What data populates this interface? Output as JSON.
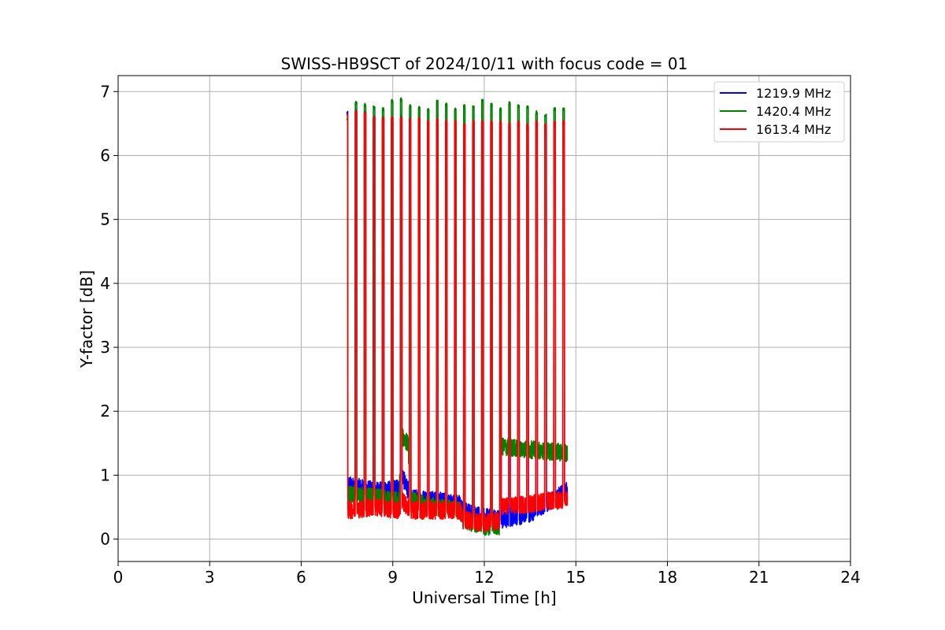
{
  "chart_data": {
    "type": "line",
    "title": "SWISS-HB9SCT of 2024/10/11 with focus code = 01",
    "xlabel": "Universal Time [h]",
    "ylabel": "Y-factor [dB]",
    "xlim": [
      0,
      24
    ],
    "ylim": [
      -0.35,
      7.25
    ],
    "xticks": [
      0,
      3,
      6,
      9,
      12,
      15,
      18,
      21,
      24
    ],
    "yticks": [
      0,
      1,
      2,
      3,
      4,
      5,
      6,
      7
    ],
    "grid": true,
    "legend_position": "top-right",
    "pulses": {
      "start": 7.5,
      "end": 14.6,
      "count": 25,
      "width": 0.05
    },
    "series": [
      {
        "name": "1219.9 MHz",
        "color": "#0000ff",
        "peak_values": [
          6.7,
          6.72,
          6.7,
          6.62,
          6.6,
          6.58,
          6.62,
          6.6,
          6.58,
          6.55,
          6.55,
          6.55,
          6.5,
          6.5,
          6.55,
          6.55,
          6.55,
          6.5,
          6.48,
          6.5,
          6.45,
          6.5,
          6.45,
          6.5,
          6.5
        ],
        "baseline": [
          [
            7.5,
            0.85
          ],
          [
            8.5,
            0.75
          ],
          [
            9.2,
            0.8
          ],
          [
            9.3,
            1.0
          ],
          [
            9.6,
            0.65
          ],
          [
            10.5,
            0.6
          ],
          [
            11.2,
            0.55
          ],
          [
            11.3,
            0.45
          ],
          [
            12.0,
            0.35
          ],
          [
            12.5,
            0.3
          ],
          [
            13.0,
            0.35
          ],
          [
            13.5,
            0.4
          ],
          [
            14.0,
            0.55
          ],
          [
            14.7,
            0.75
          ]
        ]
      },
      {
        "name": "1420.4 MHz",
        "color": "#008000",
        "peak_values": [
          6.6,
          6.85,
          6.82,
          6.78,
          6.75,
          6.88,
          6.9,
          6.8,
          6.78,
          6.75,
          6.88,
          6.82,
          6.75,
          6.8,
          6.78,
          6.88,
          6.82,
          6.75,
          6.85,
          6.8,
          6.78,
          6.7,
          6.65,
          6.75,
          6.75
        ],
        "baseline": [
          [
            7.5,
            0.7
          ],
          [
            8.5,
            0.65
          ],
          [
            9.2,
            0.6
          ],
          [
            9.3,
            1.6
          ],
          [
            9.5,
            1.5
          ],
          [
            9.6,
            0.6
          ],
          [
            10.5,
            0.5
          ],
          [
            11.2,
            0.45
          ],
          [
            11.3,
            0.3
          ],
          [
            12.0,
            0.2
          ],
          [
            12.5,
            0.2
          ],
          [
            12.55,
            1.45
          ],
          [
            13.5,
            1.4
          ],
          [
            14.7,
            1.35
          ]
        ]
      },
      {
        "name": "1613.4 MHz",
        "color": "#ff0000",
        "peak_values": [
          6.65,
          6.7,
          6.68,
          6.62,
          6.6,
          6.6,
          6.6,
          6.58,
          6.6,
          6.55,
          6.58,
          6.55,
          6.55,
          6.5,
          6.55,
          6.55,
          6.55,
          6.55,
          6.52,
          6.55,
          6.5,
          6.55,
          6.5,
          6.55,
          6.55
        ],
        "baseline": [
          [
            7.5,
            0.45
          ],
          [
            8.5,
            0.5
          ],
          [
            9.2,
            0.45
          ],
          [
            9.3,
            0.6
          ],
          [
            9.6,
            0.45
          ],
          [
            10.5,
            0.45
          ],
          [
            11.2,
            0.45
          ],
          [
            11.3,
            0.3
          ],
          [
            12.0,
            0.25
          ],
          [
            12.5,
            0.3
          ],
          [
            12.55,
            0.5
          ],
          [
            13.5,
            0.55
          ],
          [
            14.0,
            0.6
          ],
          [
            14.7,
            0.6
          ]
        ]
      }
    ]
  }
}
